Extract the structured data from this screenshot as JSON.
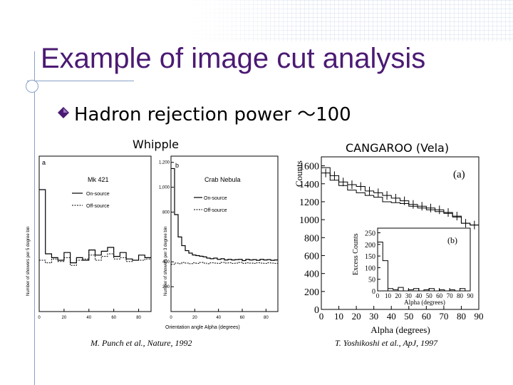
{
  "slide": {
    "title": "Example of image cut analysis",
    "bullet": "Hadron rejection power 〜100",
    "bullet_icon": "diamond-bullet-icon",
    "accent_color": "#4b1a73",
    "decor_color": "#8aa1c8"
  },
  "whipple": {
    "label": "Whipple",
    "citation": "M. Punch et al., Nature, 1992",
    "panel_a": {
      "tag": "a",
      "source": "Mk 421",
      "legend": [
        "On-source",
        "Off-source"
      ],
      "ylabel": "Number of showers per 5 degree bin",
      "xticks": [
        "0",
        "20",
        "40",
        "60",
        "80"
      ]
    },
    "panel_b": {
      "tag": "b",
      "source": "Crab Nebula",
      "legend": [
        "On-source",
        "Off-source"
      ],
      "ylabel": "Number of showers per 3 degree bin",
      "yticks": [
        "200",
        "400",
        "800",
        "1,000",
        "1,200"
      ],
      "xticks": [
        "0",
        "20",
        "40",
        "60",
        "80"
      ]
    },
    "xlabel": "Orientation angle Alpha (degrees)"
  },
  "cangaroo": {
    "label": "CANGAROO (Vela)",
    "citation": "T. Yoshikoshi et al., ApJ, 1997",
    "panel_a_tag": "(a)",
    "panel_b_tag": "(b)",
    "ylabel": "Counts",
    "xlabel": "Alpha (degrees)",
    "yticks": [
      "0",
      "200",
      "400",
      "600",
      "800",
      "1000",
      "1200",
      "1400",
      "1600"
    ],
    "xticks": [
      "0",
      "10",
      "20",
      "30",
      "40",
      "50",
      "60",
      "70",
      "80",
      "90"
    ],
    "inset_ylabel": "Excess Counts",
    "inset_xlabel": "Alpha (degrees)",
    "inset_yticks": [
      "0",
      "50",
      "100",
      "150",
      "200",
      "250"
    ],
    "inset_xticks": [
      "0",
      "10",
      "20",
      "30",
      "40",
      "50",
      "60",
      "70",
      "80",
      "90"
    ]
  },
  "chart_data": [
    {
      "type": "line",
      "title": "",
      "source_label": "Mk 421",
      "xlabel": "Orientation angle Alpha (degrees)",
      "ylabel": "Number of showers per 5 degree bin",
      "x": [
        2.5,
        7.5,
        12.5,
        17.5,
        22.5,
        27.5,
        32.5,
        37.5,
        42.5,
        47.5,
        52.5,
        57.5,
        62.5,
        67.5,
        72.5,
        77.5,
        82.5,
        87.5
      ],
      "xlim": [
        0,
        90
      ],
      "series": [
        {
          "name": "On-source",
          "values": [
            0.95,
            0.45,
            0.42,
            0.4,
            0.46,
            0.38,
            0.42,
            0.4,
            0.48,
            0.44,
            0.47,
            0.5,
            0.43,
            0.46,
            0.41,
            0.4,
            0.44,
            0.42
          ]
        },
        {
          "name": "Off-source",
          "values": [
            0.4,
            0.38,
            0.41,
            0.39,
            0.42,
            0.36,
            0.4,
            0.41,
            0.44,
            0.4,
            0.43,
            0.45,
            0.41,
            0.42,
            0.39,
            0.4,
            0.4,
            0.41
          ]
        }
      ]
    },
    {
      "type": "line",
      "title": "",
      "source_label": "Crab Nebula",
      "xlabel": "Orientation angle Alpha (degrees)",
      "ylabel": "Number of showers per 3 degree bin",
      "x": [
        1.5,
        4.5,
        7.5,
        10.5,
        13.5,
        16.5,
        19.5,
        22.5,
        25.5,
        28.5,
        31.5,
        34.5,
        37.5,
        40.5,
        43.5,
        46.5,
        49.5,
        52.5,
        55.5,
        58.5,
        61.5,
        64.5,
        67.5,
        70.5,
        73.5,
        76.5,
        79.5,
        82.5,
        85.5,
        88.5
      ],
      "xlim": [
        0,
        90
      ],
      "ylim": [
        0,
        1200
      ],
      "series": [
        {
          "name": "On-source",
          "values": [
            1150,
            780,
            600,
            530,
            490,
            470,
            455,
            450,
            445,
            440,
            430,
            425,
            430,
            420,
            425,
            415,
            420,
            415,
            418,
            420,
            410,
            420,
            415,
            418,
            412,
            420,
            415,
            418,
            412,
            415
          ]
        },
        {
          "name": "Off-source",
          "values": [
            380,
            390,
            385,
            395,
            390,
            385,
            392,
            388,
            395,
            390,
            385,
            392,
            390,
            388,
            395,
            390,
            392,
            388,
            390,
            395,
            388,
            392,
            390,
            388,
            392,
            390,
            388,
            392,
            390,
            388
          ]
        }
      ]
    },
    {
      "type": "line",
      "title": "",
      "xlabel": "Alpha (degrees)",
      "ylabel": "Counts",
      "x": [
        2.5,
        7.5,
        12.5,
        17.5,
        22.5,
        27.5,
        32.5,
        37.5,
        42.5,
        47.5,
        52.5,
        57.5,
        62.5,
        67.5,
        72.5,
        77.5,
        82.5,
        87.5
      ],
      "xlim": [
        0,
        90
      ],
      "ylim": [
        0,
        1700
      ],
      "series": [
        {
          "values": [
            1520,
            1490,
            1420,
            1390,
            1370,
            1320,
            1300,
            1270,
            1240,
            1210,
            1170,
            1150,
            1130,
            1110,
            1080,
            1040,
            960,
            940
          ]
        },
        {
          "values": [
            1580,
            1440,
            1380,
            1330,
            1300,
            1270,
            1250,
            1200,
            1190,
            1180,
            1150,
            1130,
            1110,
            1090,
            1070,
            1030,
            960,
            940
          ]
        }
      ]
    },
    {
      "type": "bar",
      "title": "",
      "xlabel": "Alpha (degrees)",
      "ylabel": "Excess Counts",
      "categories": [
        "0-5",
        "5-10",
        "10-15",
        "15-20",
        "20-25",
        "25-30",
        "30-35",
        "35-40",
        "40-45",
        "45-50",
        "50-55",
        "55-60",
        "60-65",
        "65-70",
        "70-75",
        "75-80",
        "80-85",
        "85-90"
      ],
      "values": [
        210,
        130,
        10,
        5,
        15,
        0,
        5,
        10,
        0,
        5,
        10,
        0,
        5,
        0,
        5,
        0,
        10,
        0
      ],
      "ylim": [
        0,
        270
      ]
    }
  ]
}
